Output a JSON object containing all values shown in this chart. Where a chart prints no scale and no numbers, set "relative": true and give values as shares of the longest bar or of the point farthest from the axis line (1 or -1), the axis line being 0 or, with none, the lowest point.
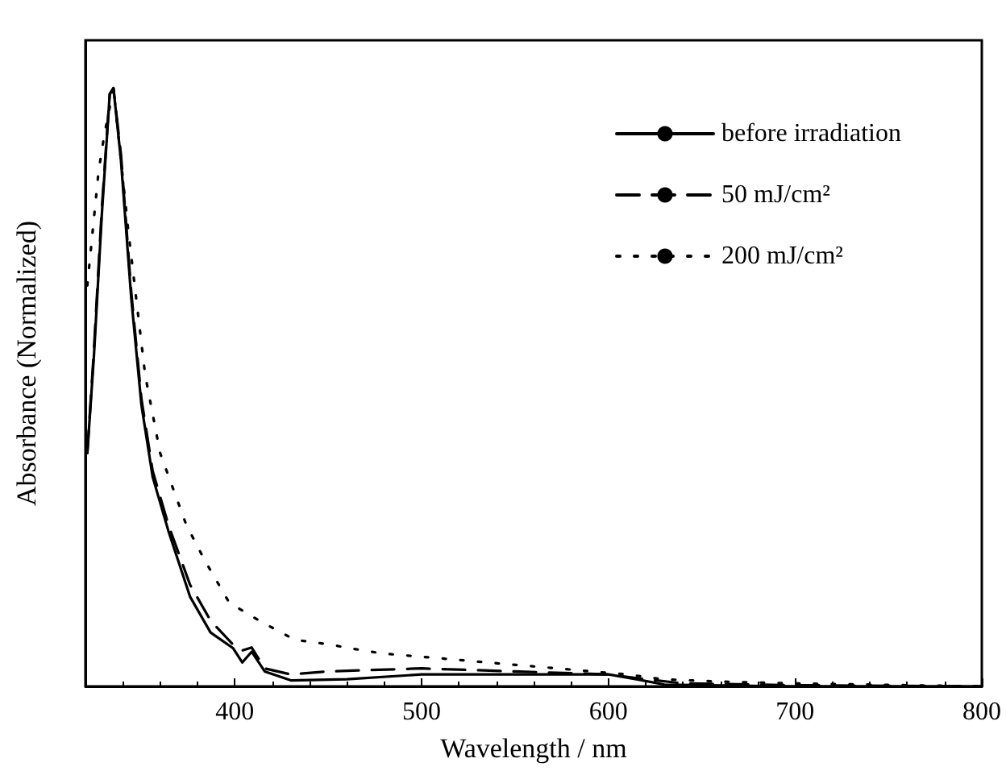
{
  "chart_data": {
    "type": "line",
    "xlabel": "Wavelength / nm",
    "ylabel": "Absorbance (Normalized)",
    "relative": true,
    "xlim": [
      320,
      800
    ],
    "xticks": [
      400,
      500,
      600,
      700,
      800
    ],
    "grid": false,
    "legend": "top right",
    "marker": "none",
    "series": [
      {
        "name": "before irradiation",
        "color": "#000000",
        "line_style": "solid",
        "x": [
          321,
          324.5,
          328.8,
          333,
          335,
          339,
          344.5,
          350,
          356,
          364.4,
          376,
          387,
          399,
          404,
          409,
          416,
          430,
          460,
          500,
          550,
          600,
          615,
          630,
          700,
          800
        ],
        "values": [
          0.39,
          0.55,
          0.79,
          0.99,
          1.0,
          0.88,
          0.65,
          0.47,
          0.35,
          0.26,
          0.15,
          0.09,
          0.064,
          0.04,
          0.058,
          0.025,
          0.01,
          0.012,
          0.02,
          0.02,
          0.02,
          0.012,
          0.003,
          0,
          0
        ]
      },
      {
        "name": "50 mJ/cm²",
        "color": "#000000",
        "line_style": "dashed",
        "x": [
          321,
          324.5,
          328.8,
          333,
          335,
          339,
          344.5,
          350,
          356,
          364.4,
          376,
          387,
          399,
          404,
          409,
          416,
          430,
          450,
          500,
          550,
          600,
          620,
          640,
          700,
          800
        ],
        "values": [
          0.39,
          0.56,
          0.8,
          0.99,
          1.0,
          0.89,
          0.66,
          0.48,
          0.36,
          0.27,
          0.17,
          0.11,
          0.07,
          0.06,
          0.065,
          0.03,
          0.02,
          0.025,
          0.03,
          0.025,
          0.02,
          0.012,
          0.005,
          0.002,
          0
        ]
      },
      {
        "name": "200 mJ/cm²",
        "color": "#000000",
        "line_style": "dotted",
        "x": [
          321,
          327,
          330,
          335,
          343,
          346,
          352,
          360,
          367,
          374,
          384,
          397,
          413,
          432,
          451,
          461,
          479,
          498,
          517,
          535,
          554,
          573,
          591,
          610,
          629,
          660,
          700,
          800
        ],
        "values": [
          0.67,
          0.86,
          0.92,
          1.0,
          0.76,
          0.68,
          0.52,
          0.39,
          0.33,
          0.27,
          0.21,
          0.14,
          0.11,
          0.078,
          0.07,
          0.064,
          0.055,
          0.05,
          0.045,
          0.04,
          0.035,
          0.03,
          0.025,
          0.02,
          0.012,
          0.008,
          0.005,
          0
        ]
      }
    ]
  }
}
